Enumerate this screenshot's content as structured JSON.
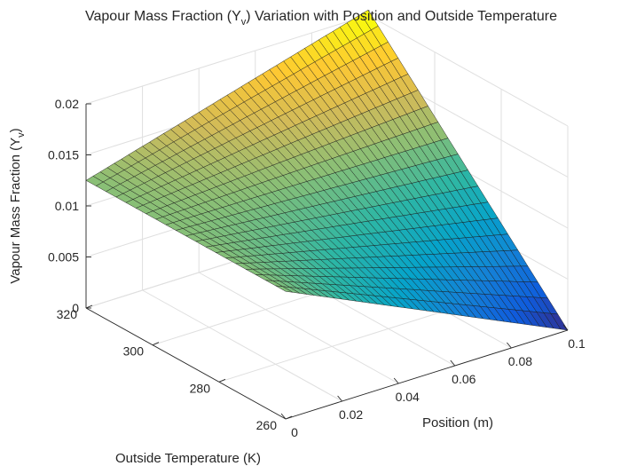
{
  "chart_data": {
    "type": "surface",
    "title": "Vapour Mass Fraction (Y",
    "title_subscript": "v",
    "title_rest": ") Variation with Position and Outside Temperature",
    "xlabel": "Position (m)",
    "ylabel": "Outside Temperature (K)",
    "zlabel": "Vapour Mass Fraction (Y",
    "zlabel_subscript": "v",
    "zlabel_rest": ")",
    "xlim": [
      0,
      0.1
    ],
    "ylim": [
      260,
      320
    ],
    "zlim": [
      0,
      0.02
    ],
    "x_ticks": [
      "0",
      "0.02",
      "0.04",
      "0.06",
      "0.08",
      "0.1"
    ],
    "x_tick_values": [
      0,
      0.02,
      0.04,
      0.06,
      0.08,
      0.1
    ],
    "y_ticks": [
      "260",
      "280",
      "300",
      "320"
    ],
    "y_tick_values": [
      260,
      280,
      300,
      320
    ],
    "z_ticks": [
      "0",
      "0.005",
      "0.01",
      "0.015",
      "0.02"
    ],
    "z_tick_values": [
      0,
      0.005,
      0.01,
      0.015,
      0.02
    ],
    "grid": true,
    "colormap": "parula",
    "colormap_stops": [
      "#352a87",
      "#0f5cdd",
      "#1481d6",
      "#06a4ca",
      "#2eb7a4",
      "#87bf77",
      "#d1bb59",
      "#fec832",
      "#f9fb0e"
    ],
    "x_samples": 41,
    "y_samples": 21,
    "corner_values": [
      {
        "x": 0,
        "y": 260,
        "z": 0.0125
      },
      {
        "x": 0,
        "y": 320,
        "z": 0.0125
      },
      {
        "x": 0.1,
        "y": 260,
        "z": 0.0
      },
      {
        "x": 0.1,
        "y": 320,
        "z": 0.0205
      }
    ]
  }
}
